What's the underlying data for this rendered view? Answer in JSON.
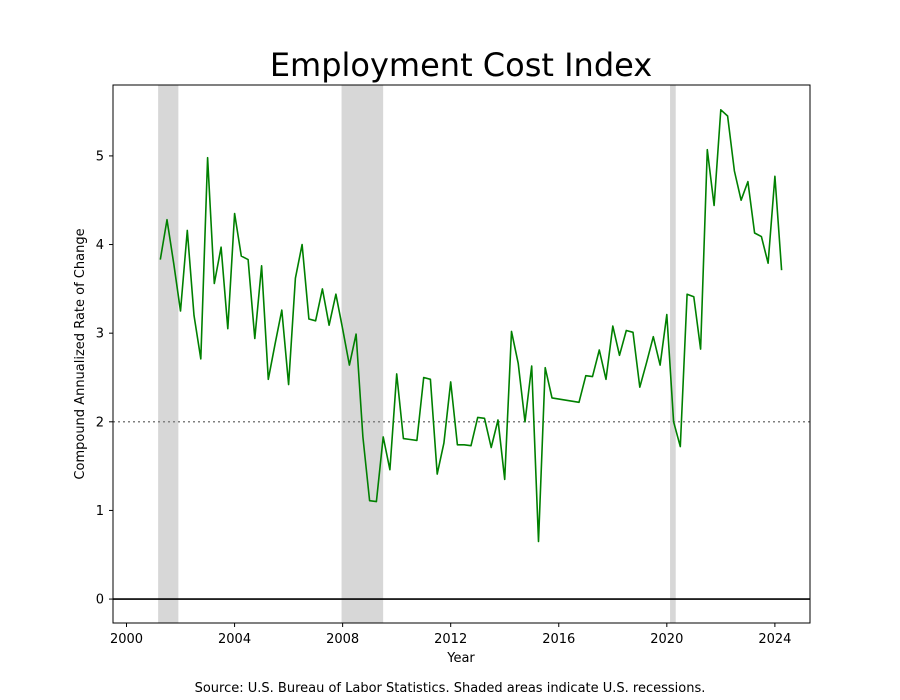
{
  "chart_data": {
    "type": "line",
    "title": "Employment Cost Index",
    "xlabel": "Year",
    "ylabel": "Compound Annualized Rate of Change",
    "caption": "Source: U.S. Bureau of Labor Statistics. Shaded areas indicate U.S. recessions.",
    "xlim": [
      1999.5,
      2025.3
    ],
    "ylim": [
      -0.27,
      5.8
    ],
    "x_ticks": [
      2000,
      2004,
      2008,
      2012,
      2016,
      2020,
      2024
    ],
    "y_ticks": [
      0,
      1,
      2,
      3,
      4,
      5
    ],
    "reference_lines": [
      {
        "y": 2,
        "style": "dotted",
        "color": "#808080"
      },
      {
        "y": 0,
        "style": "solid",
        "color": "#000000"
      }
    ],
    "recessions": [
      {
        "start": 2001.17,
        "end": 2001.92
      },
      {
        "start": 2007.96,
        "end": 2009.5
      },
      {
        "start": 2020.12,
        "end": 2020.33
      }
    ],
    "series": [
      {
        "color": "#008000",
        "points": [
          [
            2001.25,
            3.83
          ],
          [
            2001.5,
            4.28
          ],
          [
            2001.75,
            3.78
          ],
          [
            2002.0,
            3.25
          ],
          [
            2002.25,
            4.16
          ],
          [
            2002.5,
            3.2
          ],
          [
            2002.75,
            2.71
          ],
          [
            2003.0,
            4.98
          ],
          [
            2003.25,
            3.56
          ],
          [
            2003.5,
            3.97
          ],
          [
            2003.75,
            3.05
          ],
          [
            2004.0,
            4.35
          ],
          [
            2004.25,
            3.87
          ],
          [
            2004.5,
            3.83
          ],
          [
            2004.75,
            2.94
          ],
          [
            2005.0,
            3.76
          ],
          [
            2005.25,
            2.48
          ],
          [
            2005.5,
            2.88
          ],
          [
            2005.75,
            3.26
          ],
          [
            2006.0,
            2.42
          ],
          [
            2006.25,
            3.62
          ],
          [
            2006.5,
            4.0
          ],
          [
            2006.75,
            3.16
          ],
          [
            2007.0,
            3.14
          ],
          [
            2007.25,
            3.5
          ],
          [
            2007.5,
            3.09
          ],
          [
            2007.75,
            3.44
          ],
          [
            2008.0,
            3.05
          ],
          [
            2008.25,
            2.64
          ],
          [
            2008.5,
            2.99
          ],
          [
            2008.75,
            1.83
          ],
          [
            2009.0,
            1.11
          ],
          [
            2009.25,
            1.1
          ],
          [
            2009.5,
            1.83
          ],
          [
            2009.75,
            1.46
          ],
          [
            2010.0,
            2.54
          ],
          [
            2010.25,
            1.81
          ],
          [
            2010.5,
            1.8
          ],
          [
            2010.75,
            1.79
          ],
          [
            2011.0,
            2.5
          ],
          [
            2011.25,
            2.48
          ],
          [
            2011.5,
            1.41
          ],
          [
            2011.75,
            1.76
          ],
          [
            2012.0,
            2.45
          ],
          [
            2012.25,
            1.74
          ],
          [
            2012.5,
            1.74
          ],
          [
            2012.75,
            1.73
          ],
          [
            2013.0,
            2.05
          ],
          [
            2013.25,
            2.04
          ],
          [
            2013.5,
            1.71
          ],
          [
            2013.75,
            2.02
          ],
          [
            2014.0,
            1.35
          ],
          [
            2014.25,
            3.02
          ],
          [
            2014.5,
            2.66
          ],
          [
            2014.75,
            2.0
          ],
          [
            2015.0,
            2.63
          ],
          [
            2015.25,
            0.65
          ],
          [
            2015.5,
            2.61
          ],
          [
            2015.75,
            2.27
          ],
          [
            2016.75,
            2.22
          ],
          [
            2017.0,
            2.52
          ],
          [
            2017.25,
            2.51
          ],
          [
            2017.5,
            2.81
          ],
          [
            2017.75,
            2.48
          ],
          [
            2018.0,
            3.08
          ],
          [
            2018.25,
            2.75
          ],
          [
            2018.5,
            3.03
          ],
          [
            2018.75,
            3.01
          ],
          [
            2019.0,
            2.39
          ],
          [
            2019.25,
            2.67
          ],
          [
            2019.5,
            2.96
          ],
          [
            2019.75,
            2.64
          ],
          [
            2020.0,
            3.21
          ],
          [
            2020.25,
            2.0
          ],
          [
            2020.5,
            1.72
          ],
          [
            2020.75,
            3.44
          ],
          [
            2021.0,
            3.41
          ],
          [
            2021.25,
            2.82
          ],
          [
            2021.5,
            5.07
          ],
          [
            2021.75,
            4.44
          ],
          [
            2022.0,
            5.52
          ],
          [
            2022.25,
            5.45
          ],
          [
            2022.5,
            4.83
          ],
          [
            2022.75,
            4.5
          ],
          [
            2023.0,
            4.71
          ],
          [
            2023.25,
            4.13
          ],
          [
            2023.5,
            4.09
          ],
          [
            2023.75,
            3.79
          ],
          [
            2024.0,
            4.77
          ],
          [
            2024.25,
            3.71
          ]
        ]
      }
    ]
  }
}
